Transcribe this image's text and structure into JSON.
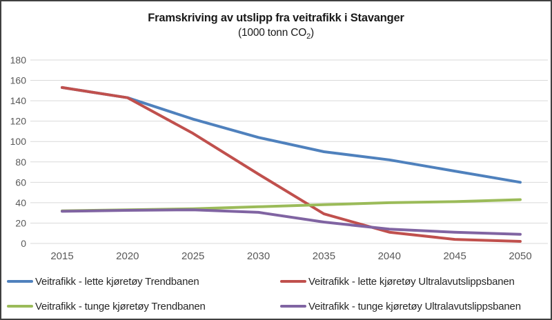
{
  "chart": {
    "title": "Framskriving av utslipp fra veitrafikk i Stavanger",
    "subtitle_prefix": "(1000 tonn CO",
    "subtitle_sub": "2",
    "subtitle_suffix": ")"
  },
  "chart_data": {
    "type": "line",
    "title": "Framskriving av utslipp fra veitrafikk i Stavanger",
    "subtitle": "(1000 tonn CO2)",
    "categories": [
      "2015",
      "2020",
      "2025",
      "2030",
      "2035",
      "2040",
      "2045",
      "2050"
    ],
    "series": [
      {
        "name": "Veitrafikk - lette kjøretøy Trendbanen",
        "color": "#4F81BD",
        "values": [
          153,
          143,
          122,
          104,
          90,
          82,
          71,
          60
        ]
      },
      {
        "name": "Veitrafikk - lette kjøretøy Ultralavutslippsbanen",
        "color": "#C0504D",
        "values": [
          153,
          143,
          108,
          68,
          29,
          11,
          4,
          2
        ]
      },
      {
        "name": "Veitrafikk - tunge kjøretøy Trendbanen",
        "color": "#9BBB59",
        "values": [
          32,
          33,
          34,
          36,
          38,
          40,
          41,
          43
        ]
      },
      {
        "name": "Veitrafikk - tunge kjøretøy Ultralavutslippsbanen",
        "color": "#8064A2",
        "values": [
          31.5,
          32.5,
          33,
          30.5,
          21,
          14,
          11,
          9
        ]
      }
    ],
    "ylim": [
      0,
      180
    ],
    "ytick_step": 20,
    "grid": true,
    "legend_position": "bottom",
    "axis_label_color": "#595959",
    "grid_color": "#D9D9D9",
    "line_width": 4
  }
}
